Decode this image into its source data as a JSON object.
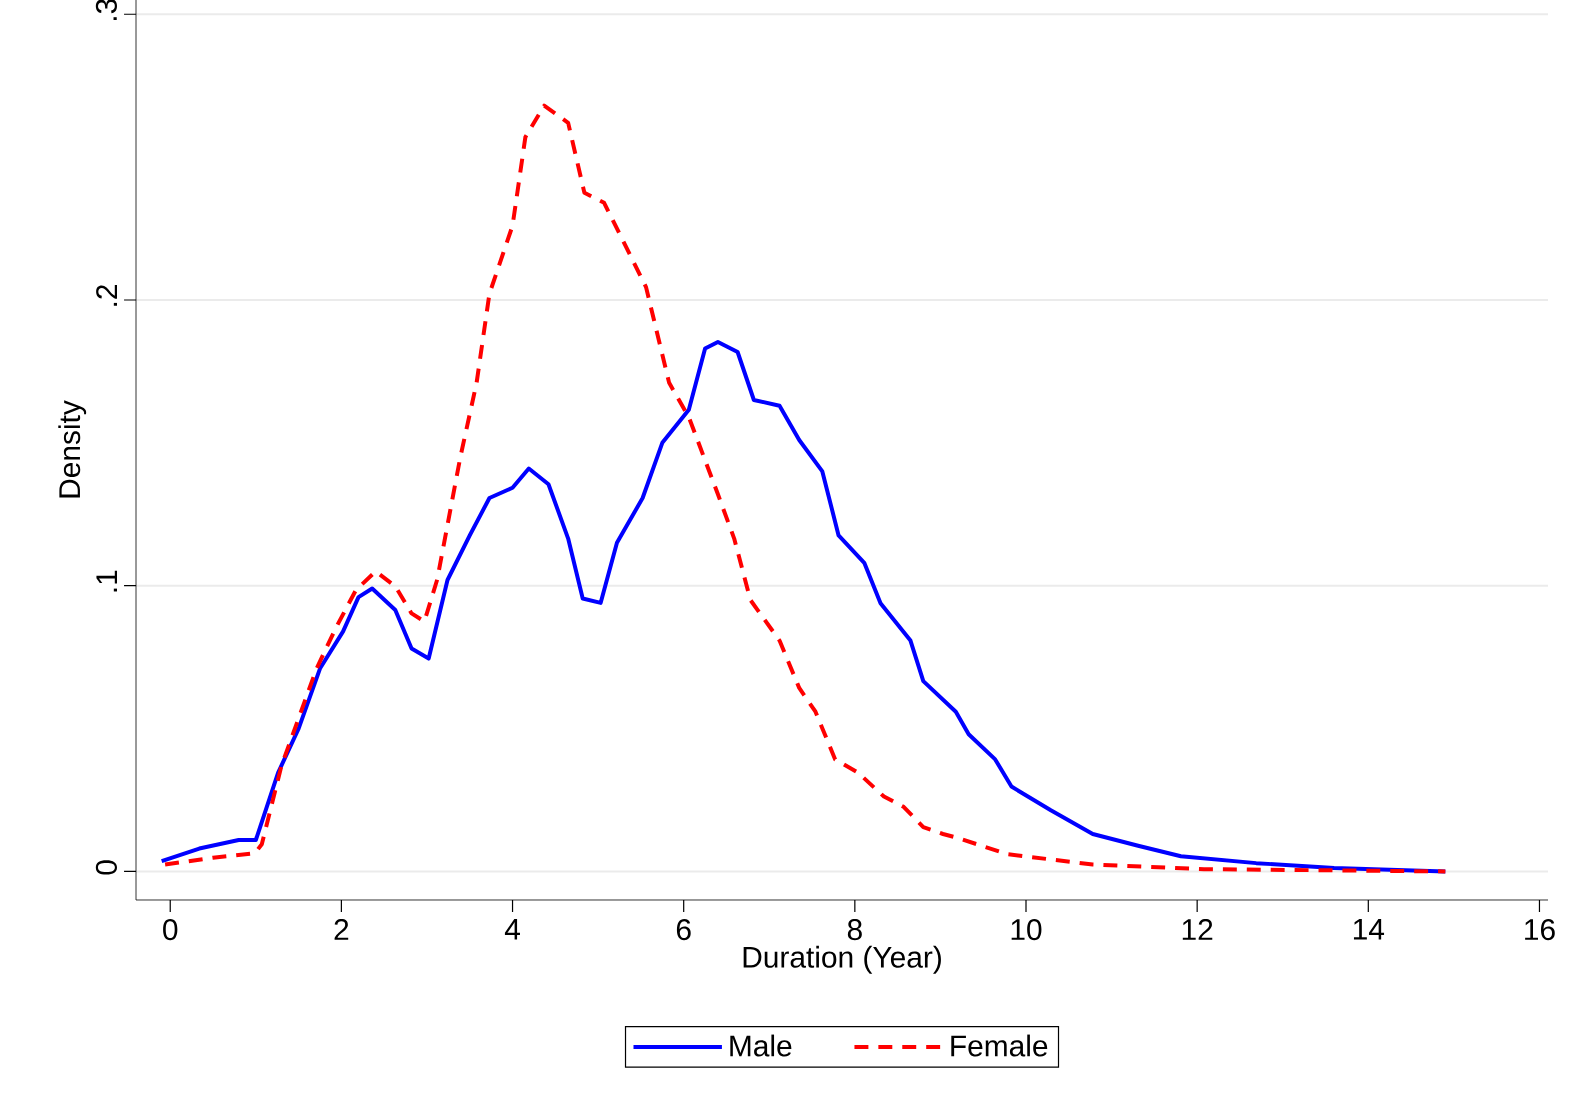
{
  "chart_data": {
    "type": "line",
    "xlabel": "Duration (Year)",
    "ylabel": "Density",
    "xlim": [
      -0.4,
      16.1
    ],
    "ylim": [
      -0.01,
      0.305
    ],
    "xticks": [
      0,
      2,
      4,
      6,
      8,
      10,
      12,
      14,
      16
    ],
    "yticks": [
      {
        "value": 0,
        "label": "0"
      },
      {
        "value": 0.1,
        "label": ".1"
      },
      {
        "value": 0.2,
        "label": ".2"
      },
      {
        "value": 0.3,
        "label": ".3"
      }
    ],
    "grid": "y",
    "legend": "bottom",
    "marker": "none",
    "series": [
      {
        "name": "Male",
        "color": "#0000ff",
        "line_style": "solid",
        "x": [
          -0.1,
          0.34,
          0.8,
          1.0,
          1.26,
          1.5,
          1.75,
          2.02,
          2.2,
          2.36,
          2.63,
          2.82,
          3.02,
          3.24,
          3.5,
          3.73,
          4.0,
          4.19,
          4.42,
          4.65,
          4.82,
          5.03,
          5.22,
          5.52,
          5.75,
          6.06,
          6.25,
          6.4,
          6.63,
          6.82,
          7.12,
          7.35,
          7.62,
          7.81,
          8.11,
          8.3,
          8.65,
          8.8,
          9.18,
          9.33,
          9.64,
          9.83,
          10.29,
          10.78,
          11.31,
          11.81,
          12.69,
          13.6,
          14.9
        ],
        "values": [
          0.0036,
          0.008,
          0.011,
          0.011,
          0.0345,
          0.05,
          0.071,
          0.084,
          0.096,
          0.099,
          0.0915,
          0.078,
          0.0745,
          0.102,
          0.1176,
          0.1307,
          0.1343,
          0.141,
          0.1355,
          0.1165,
          0.0955,
          0.094,
          0.115,
          0.1307,
          0.15,
          0.1616,
          0.183,
          0.1853,
          0.1818,
          0.165,
          0.163,
          0.151,
          0.14,
          0.1176,
          0.108,
          0.0939,
          0.0808,
          0.0666,
          0.0559,
          0.048,
          0.0392,
          0.0297,
          0.0214,
          0.0131,
          0.009,
          0.0053,
          0.0029,
          0.0012,
          0.0
        ]
      },
      {
        "name": "Female",
        "color": "#ff0000",
        "line_style": "dashed",
        "x": [
          -0.06,
          0.5,
          0.99,
          1.07,
          1.3,
          1.71,
          1.94,
          2.17,
          2.4,
          2.63,
          2.82,
          2.97,
          3.12,
          3.39,
          3.58,
          3.73,
          4.0,
          4.15,
          4.37,
          4.65,
          4.84,
          5.07,
          5.37,
          5.56,
          5.83,
          6.06,
          6.4,
          6.59,
          6.78,
          7.12,
          7.35,
          7.54,
          7.77,
          8.04,
          8.34,
          8.57,
          8.8,
          9.03,
          9.18,
          9.79,
          10.78,
          12.08,
          14.9
        ],
        "values": [
          0.0024,
          0.0048,
          0.0064,
          0.0095,
          0.037,
          0.071,
          0.0855,
          0.0985,
          0.105,
          0.0998,
          0.0903,
          0.0875,
          0.1022,
          0.145,
          0.171,
          0.2022,
          0.226,
          0.257,
          0.268,
          0.262,
          0.2375,
          0.234,
          0.216,
          0.2045,
          0.171,
          0.159,
          0.132,
          0.1165,
          0.095,
          0.0808,
          0.0642,
          0.0559,
          0.0392,
          0.0345,
          0.0262,
          0.0226,
          0.0155,
          0.0131,
          0.0119,
          0.006,
          0.0024,
          0.0008,
          0.0
        ]
      }
    ]
  }
}
